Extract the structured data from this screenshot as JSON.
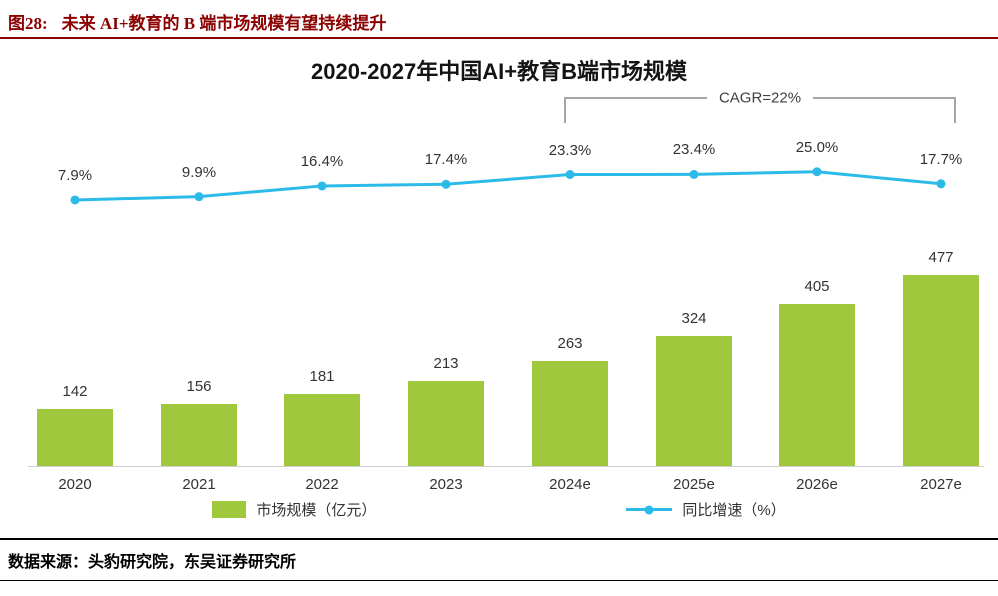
{
  "figure_header": {
    "label": "图28:",
    "title": "未来 AI+教育的 B 端市场规模有望持续提升"
  },
  "colors": {
    "bar": "#A0C83C",
    "line": "#2CBBE8",
    "header_accent": "#8B0000"
  },
  "chart_data": {
    "type": "combo",
    "title": "2020-2027年中国AI+教育B端市场规模",
    "categories": [
      "2020",
      "2021",
      "2022",
      "2023",
      "2024e",
      "2025e",
      "2026e",
      "2027e"
    ],
    "series": [
      {
        "name": "市场规模（亿元）",
        "type": "bar",
        "color": "#A0C83C",
        "values": [
          142,
          156,
          181,
          213,
          263,
          324,
          405,
          477
        ]
      },
      {
        "name": "同比增速（%）",
        "type": "line",
        "color": "#2CBBE8",
        "values": [
          7.9,
          9.9,
          16.4,
          17.4,
          23.3,
          23.4,
          25.0,
          17.7
        ]
      }
    ],
    "bar_labels": [
      "142",
      "156",
      "181",
      "213",
      "263",
      "324",
      "405",
      "477"
    ],
    "line_labels": [
      "7.9%",
      "9.9%",
      "16.4%",
      "17.4%",
      "23.3%",
      "23.4%",
      "25.0%",
      "17.7%"
    ],
    "annotation": {
      "text": "CAGR=22%",
      "span_categories": [
        "2024e",
        "2027e"
      ]
    },
    "legend": [
      "市场规模（亿元）",
      "同比增速（%）"
    ],
    "legend_position": "bottom",
    "xlabel": "",
    "ylabel": ""
  },
  "footer": {
    "source": "数据来源：头豹研究院，东吴证券研究所"
  }
}
